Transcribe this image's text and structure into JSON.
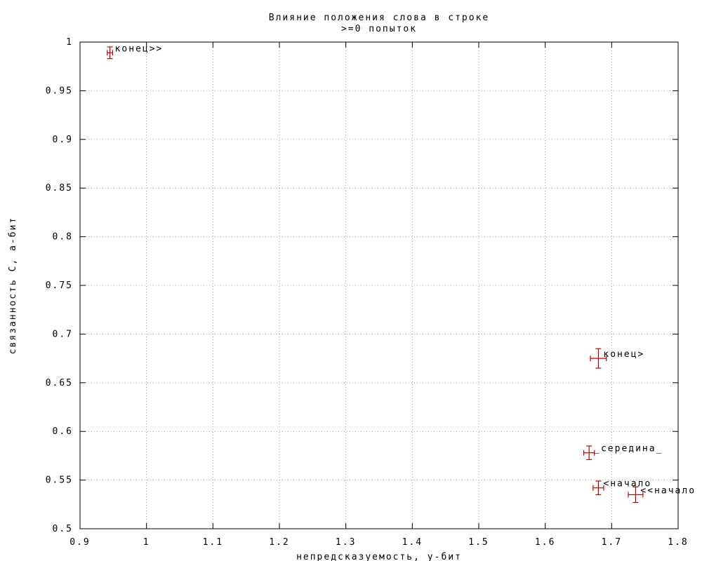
{
  "chart_data": {
    "type": "scatter",
    "title": "Влияние положения слова в строке",
    "subtitle": ">=0 попыток",
    "xlabel": "непредсказуемость, у-бит",
    "ylabel": "связанность С, а-бит",
    "xlim": [
      0.9,
      1.8
    ],
    "ylim": [
      0.5,
      1.0
    ],
    "x_ticks": [
      "0.9",
      "1",
      "1.1",
      "1.2",
      "1.3",
      "1.4",
      "1.5",
      "1.6",
      "1.7",
      "1.8"
    ],
    "y_ticks": [
      "0.5",
      "0.55",
      "0.6",
      "0.65",
      "0.7",
      "0.75",
      "0.8",
      "0.85",
      "0.9",
      "0.95",
      "1"
    ],
    "grid": true,
    "error_bars": true,
    "marker_color": "#c00000",
    "points": [
      {
        "label": "конец>>",
        "x": 0.945,
        "y": 0.989,
        "xerr": 0.004,
        "yerr": 0.006
      },
      {
        "label": "конец>",
        "x": 1.68,
        "y": 0.675,
        "xerr": 0.012,
        "yerr": 0.01
      },
      {
        "label": "_середина_",
        "x": 1.666,
        "y": 0.578,
        "xerr": 0.008,
        "yerr": 0.007
      },
      {
        "label": "<начало",
        "x": 1.68,
        "y": 0.542,
        "xerr": 0.008,
        "yerr": 0.007
      },
      {
        "label": "<<начало",
        "x": 1.736,
        "y": 0.535,
        "xerr": 0.011,
        "yerr": 0.008
      }
    ]
  }
}
